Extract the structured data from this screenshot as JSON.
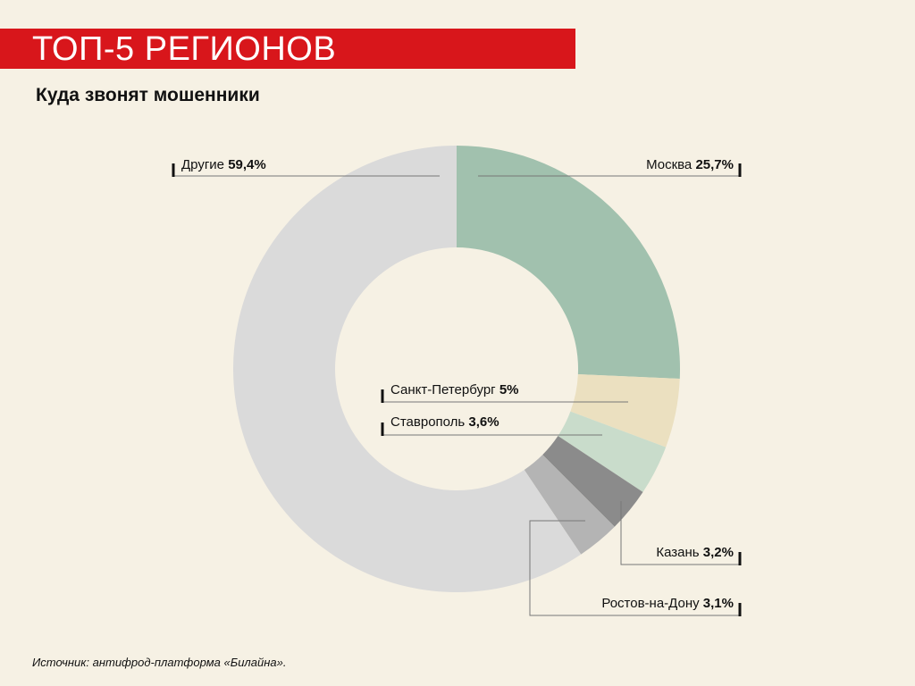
{
  "header": {
    "title": "ТОП-5 РЕГИОНОВ",
    "subtitle": "Куда звонят мошенники"
  },
  "source": "Источник: антифрод-платформа «Билайна».",
  "colors": {
    "accent": "#d8161b",
    "background": "#f6f1e4",
    "leader": "#777777",
    "tick": "#111111"
  },
  "chart_data": {
    "type": "pie",
    "variant": "donut",
    "title": "Куда звонят мошенники",
    "start": "12 o'clock",
    "direction": "clockwise",
    "slices": [
      {
        "label": "Москва",
        "value": 25.7,
        "value_label": "25,7%",
        "color": "#a1c1ae"
      },
      {
        "label": "Санкт-Петербург",
        "value": 5,
        "value_label": "5%",
        "color": "#ebe0c0"
      },
      {
        "label": "Ставрополь",
        "value": 3.6,
        "value_label": "3,6%",
        "color": "#c9dccb"
      },
      {
        "label": "Казань",
        "value": 3.2,
        "value_label": "3,2%",
        "color": "#8b8b8b"
      },
      {
        "label": "Ростов-на-Дону",
        "value": 3.1,
        "value_label": "3,1%",
        "color": "#b4b4b4"
      },
      {
        "label": "Другие",
        "value": 59.4,
        "value_label": "59,4%",
        "color": "#dadada"
      }
    ]
  }
}
